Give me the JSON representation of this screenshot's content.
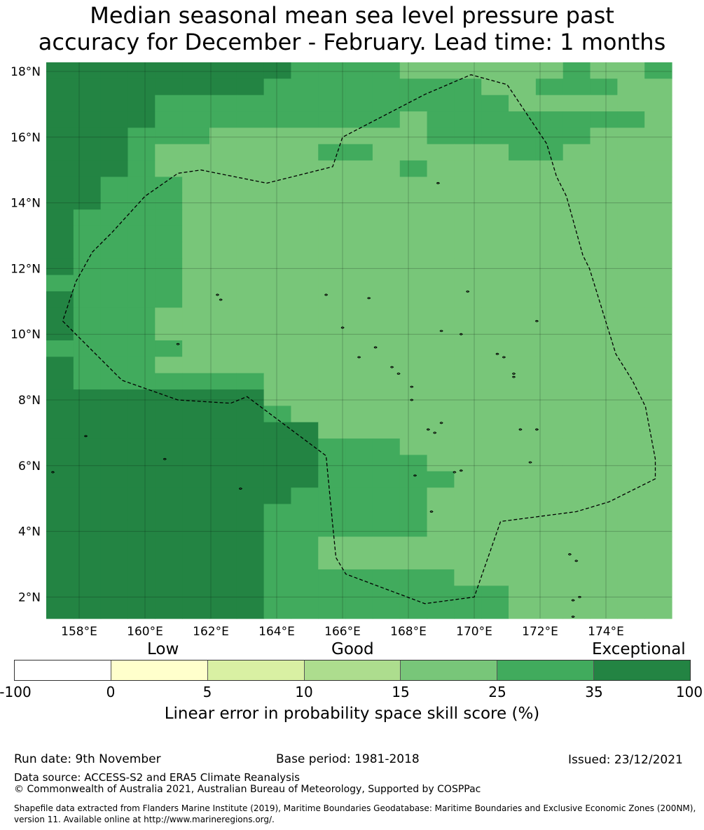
{
  "title_line1": "Median seasonal mean sea level pressure past",
  "title_line2": "accuracy for December - February. Lead time: 1 months",
  "map": {
    "lon_range": [
      157,
      176
    ],
    "lat_range": [
      1.4,
      18.3
    ],
    "lon_ticks": [
      {
        "value": 158,
        "label": "158°E"
      },
      {
        "value": 160,
        "label": "160°E"
      },
      {
        "value": 162,
        "label": "162°E"
      },
      {
        "value": 164,
        "label": "164°E"
      },
      {
        "value": 166,
        "label": "166°E"
      },
      {
        "value": 168,
        "label": "168°E"
      },
      {
        "value": 170,
        "label": "170°E"
      },
      {
        "value": 172,
        "label": "172°E"
      },
      {
        "value": 174,
        "label": "174°E"
      }
    ],
    "lat_ticks": [
      {
        "value": 18,
        "label": "18°N"
      },
      {
        "value": 16,
        "label": "16°N"
      },
      {
        "value": 14,
        "label": "14°N"
      },
      {
        "value": 12,
        "label": "12°N"
      },
      {
        "value": 10,
        "label": "10°N"
      },
      {
        "value": 8,
        "label": "8°N"
      },
      {
        "value": 6,
        "label": "6°N"
      },
      {
        "value": 4,
        "label": "4°N"
      },
      {
        "value": 2,
        "label": "2°N"
      }
    ],
    "skill_categories": {
      "0": "15-25",
      "1": "25-35",
      "2": "35-100"
    },
    "skill_colors": {
      "0": "#78c679",
      "1": "#41ab5d",
      "2": "#238443"
    },
    "grid_description": "categories per cell, north to south",
    "grid": [
      "22222222211110000001001",
      "22222222111111110011100",
      "22221111111111111000000",
      "22221111111110111111110",
      "22211100000000111111000",
      "22210000001100000110000",
      "22210000000001000000000",
      "22111000000000000000000",
      "22111000000000000000000",
      "21111000000000000000000",
      "21111000000000000000000",
      "21111000000000000000000",
      "21111000000000000000000",
      "11111000000000000000000",
      "21111000000000000000000",
      "21110000000000000000000",
      "21110000000000000000000",
      "11111000000000000000000",
      "21110000000000000000000",
      "21111111000000000000000",
      "22222222000000000000000",
      "22222222100000000000000",
      "22222222220000000000000",
      "22222222221110000000000",
      "22222222221111000000000",
      "22222222221111100000000",
      "22222222211111000000000",
      "22222222111111000000000",
      "22222222111111000000000",
      "22222222110000000000000",
      "22222222110000000000000",
      "22222222111111100000000",
      "22222222111111111000000",
      "22222222111111111000000"
    ],
    "eez_boundary_lonlat": [
      [
        157.5,
        10.4
      ],
      [
        158.2,
        9.7
      ],
      [
        159.3,
        8.6
      ],
      [
        161.0,
        8.0
      ],
      [
        162.6,
        7.9
      ],
      [
        163.1,
        8.1
      ],
      [
        164.3,
        7.2
      ],
      [
        165.5,
        6.3
      ],
      [
        165.7,
        4.2
      ],
      [
        165.8,
        3.2
      ],
      [
        166.1,
        2.7
      ],
      [
        168.5,
        1.8
      ],
      [
        170.0,
        2.0
      ],
      [
        170.8,
        4.3
      ],
      [
        173.1,
        4.6
      ],
      [
        174.1,
        4.9
      ],
      [
        175.5,
        5.6
      ],
      [
        175.5,
        6.2
      ],
      [
        175.2,
        7.8
      ],
      [
        174.8,
        8.6
      ],
      [
        174.3,
        9.4
      ],
      [
        173.9,
        10.7
      ],
      [
        173.5,
        12.0
      ],
      [
        173.3,
        12.4
      ],
      [
        172.8,
        14.2
      ],
      [
        172.5,
        14.8
      ],
      [
        172.2,
        15.8
      ],
      [
        171.8,
        16.4
      ],
      [
        171.0,
        17.6
      ],
      [
        169.9,
        17.9
      ],
      [
        168.5,
        17.3
      ],
      [
        166.0,
        16.0
      ],
      [
        165.7,
        15.1
      ],
      [
        164.1,
        14.7
      ],
      [
        163.7,
        14.6
      ],
      [
        161.7,
        15.0
      ],
      [
        161.0,
        14.9
      ],
      [
        160.0,
        14.2
      ],
      [
        159.0,
        13.1
      ],
      [
        158.4,
        12.5
      ],
      [
        157.9,
        11.6
      ],
      [
        157.5,
        10.4
      ]
    ],
    "islands_lonlat": [
      [
        158.2,
        6.9
      ],
      [
        160.6,
        6.2
      ],
      [
        162.9,
        5.3
      ],
      [
        157.2,
        5.8
      ],
      [
        161.0,
        9.7
      ],
      [
        168.9,
        14.6
      ],
      [
        162.2,
        11.2
      ],
      [
        162.3,
        11.05
      ],
      [
        165.5,
        11.2
      ],
      [
        166.8,
        11.1
      ],
      [
        169.8,
        11.3
      ],
      [
        171.9,
        10.4
      ],
      [
        166.0,
        10.2
      ],
      [
        169.0,
        10.1
      ],
      [
        169.6,
        10.0
      ],
      [
        170.7,
        9.4
      ],
      [
        170.9,
        9.3
      ],
      [
        171.2,
        8.8
      ],
      [
        171.2,
        8.7
      ],
      [
        167.7,
        8.8
      ],
      [
        168.1,
        8.4
      ],
      [
        166.5,
        9.3
      ],
      [
        167.5,
        9.0
      ],
      [
        167.0,
        9.6
      ],
      [
        168.1,
        8.0
      ],
      [
        168.6,
        7.1
      ],
      [
        168.8,
        7.0
      ],
      [
        169.0,
        7.3
      ],
      [
        169.4,
        5.8
      ],
      [
        169.6,
        5.85
      ],
      [
        168.2,
        5.7
      ],
      [
        171.7,
        6.1
      ],
      [
        168.7,
        4.6
      ],
      [
        172.9,
        3.3
      ],
      [
        173.1,
        3.1
      ],
      [
        173.2,
        2.0
      ],
      [
        173.0,
        1.9
      ],
      [
        173.0,
        1.4
      ],
      [
        171.9,
        7.1
      ],
      [
        171.4,
        7.1
      ]
    ]
  },
  "legend": {
    "category_labels": [
      "Low",
      "Good",
      "Exceptional"
    ],
    "colors": [
      "#ffffff",
      "#ffffcc",
      "#d9f0a3",
      "#addd8e",
      "#78c679",
      "#41ab5d",
      "#238443"
    ],
    "ticks": [
      "-100",
      "0",
      "5",
      "10",
      "15",
      "25",
      "35",
      "100"
    ],
    "axis_label": "Linear error in probability space skill score (%)"
  },
  "footer": {
    "run_date": "Run date: 9th November",
    "base_period": "Base period: 1981-2018",
    "issued": "Issued: 23/12/2021",
    "data_source": "Data source: ACCESS-S2 and ERA5 Climate Reanalysis",
    "copyright": "© Commonwealth of Australia 2021, Australian Bureau of Meteorology, Supported by COSPPac",
    "shapefile_note": "Shapefile data extracted from Flanders Marine Institute (2019), Maritime Boundaries Geodatabase: Maritime Boundaries and Exclusive Economic Zones (200NM), version 11. Available online at http://www.marineregions.org/."
  }
}
